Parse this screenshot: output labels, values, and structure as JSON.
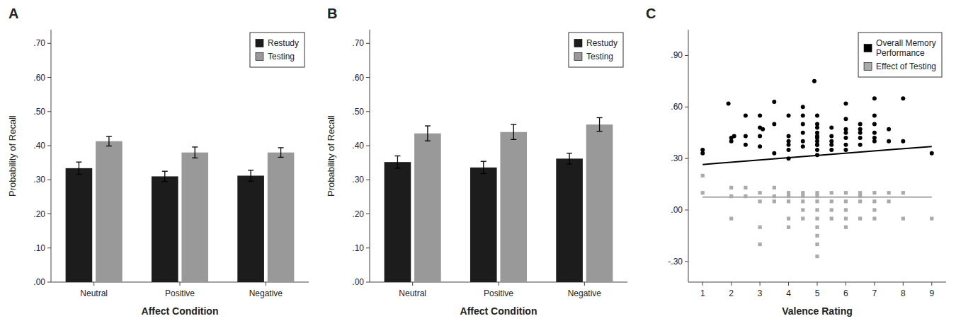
{
  "chart_data": [
    {
      "type": "bar",
      "title": "A",
      "categories": [
        "Neutral",
        "Positive",
        "Negative"
      ],
      "series": [
        {
          "name": "Restudy",
          "color": "#1c1c1c",
          "values": [
            0.334,
            0.31,
            0.312
          ],
          "errors": [
            0.018,
            0.015,
            0.016
          ]
        },
        {
          "name": "Testing",
          "color": "#999999",
          "values": [
            0.413,
            0.38,
            0.38
          ],
          "errors": [
            0.014,
            0.016,
            0.014
          ]
        }
      ],
      "xlabel": "Affect Condition",
      "ylabel": "Probability of Recall",
      "ylim": [
        0.0,
        0.74
      ],
      "yticks": [
        {
          "value": 0.0,
          "label": ".00"
        },
        {
          "value": 0.1,
          "label": ".10"
        },
        {
          "value": 0.2,
          "label": ".20"
        },
        {
          "value": 0.3,
          "label": ".30"
        },
        {
          "value": 0.4,
          "label": ".40"
        },
        {
          "value": 0.5,
          "label": ".50"
        },
        {
          "value": 0.6,
          "label": ".60"
        },
        {
          "value": 0.7,
          "label": ".70"
        }
      ],
      "legend": "upper right"
    },
    {
      "type": "bar",
      "title": "B",
      "categories": [
        "Neutral",
        "Positive",
        "Negative"
      ],
      "series": [
        {
          "name": "Restudy",
          "color": "#1c1c1c",
          "values": [
            0.352,
            0.336,
            0.362
          ],
          "errors": [
            0.018,
            0.018,
            0.016
          ]
        },
        {
          "name": "Testing",
          "color": "#999999",
          "values": [
            0.436,
            0.44,
            0.462
          ],
          "errors": [
            0.022,
            0.022,
            0.02
          ]
        }
      ],
      "xlabel": "Affect Condition",
      "ylabel": "Probability of Recall",
      "ylim": [
        0.0,
        0.74
      ],
      "yticks": [
        {
          "value": 0.0,
          "label": ".00"
        },
        {
          "value": 0.1,
          "label": ".10"
        },
        {
          "value": 0.2,
          "label": ".20"
        },
        {
          "value": 0.3,
          "label": ".30"
        },
        {
          "value": 0.4,
          "label": ".40"
        },
        {
          "value": 0.5,
          "label": ".50"
        },
        {
          "value": 0.6,
          "label": ".60"
        },
        {
          "value": 0.7,
          "label": ".70"
        }
      ],
      "legend": "upper right"
    },
    {
      "type": "scatter",
      "title": "C",
      "xlabel": "Valence Rating",
      "xlim": [
        0.5,
        9.5
      ],
      "xticks": [
        1,
        2,
        3,
        4,
        5,
        6,
        7,
        8,
        9
      ],
      "ylim": [
        -0.42,
        1.05
      ],
      "yticks": [
        {
          "value": -0.3,
          "label": "-.30"
        },
        {
          "value": 0.0,
          "label": ".00"
        },
        {
          "value": 0.3,
          "label": ".30"
        },
        {
          "value": 0.6,
          "label": ".60"
        },
        {
          "value": 0.9,
          "label": ".90"
        }
      ],
      "legend": "upper right",
      "series": [
        {
          "name": "Overall Memory\nPerformance",
          "color": "#000000",
          "marker": "circle",
          "x": [
            1.0,
            1.0,
            1.9,
            2.0,
            2.0,
            2.1,
            2.5,
            2.5,
            2.5,
            3.0,
            3.0,
            3.0,
            3.0,
            3.1,
            3.5,
            3.5,
            3.5,
            4.0,
            4.0,
            4.0,
            4.0,
            4.0,
            4.0,
            4.5,
            4.5,
            4.5,
            4.5,
            4.5,
            4.5,
            4.9,
            5.0,
            5.0,
            5.0,
            5.0,
            5.0,
            5.0,
            5.0,
            5.0,
            5.0,
            5.0,
            5.0,
            5.5,
            5.5,
            5.5,
            5.5,
            5.5,
            6.0,
            6.0,
            6.0,
            6.0,
            6.0,
            6.0,
            6.0,
            6.5,
            6.5,
            6.5,
            6.5,
            6.5,
            7.0,
            7.0,
            7.0,
            7.0,
            7.0,
            7.0,
            7.5,
            7.5,
            8.0,
            8.0,
            9.0
          ],
          "values": [
            0.33,
            0.35,
            0.62,
            0.4,
            0.42,
            0.43,
            0.55,
            0.43,
            0.38,
            0.48,
            0.37,
            0.43,
            0.55,
            0.47,
            0.33,
            0.5,
            0.63,
            0.3,
            0.43,
            0.38,
            0.35,
            0.55,
            0.4,
            0.37,
            0.4,
            0.55,
            0.5,
            0.45,
            0.6,
            0.75,
            0.4,
            0.43,
            0.38,
            0.48,
            0.55,
            0.45,
            0.35,
            0.5,
            0.42,
            0.32,
            0.38,
            0.4,
            0.38,
            0.43,
            0.48,
            0.35,
            0.42,
            0.47,
            0.38,
            0.53,
            0.45,
            0.35,
            0.62,
            0.45,
            0.5,
            0.42,
            0.38,
            0.47,
            0.42,
            0.5,
            0.65,
            0.4,
            0.55,
            0.45,
            0.4,
            0.47,
            0.4,
            0.65,
            0.33
          ]
        },
        {
          "name": "Effect of Testing",
          "color": "#aaaaaa",
          "marker": "square",
          "x": [
            1.0,
            1.0,
            2.0,
            2.0,
            2.0,
            2.5,
            2.5,
            3.0,
            3.0,
            3.0,
            3.0,
            3.5,
            3.5,
            3.5,
            4.0,
            4.0,
            4.0,
            4.0,
            4.0,
            4.5,
            4.5,
            4.5,
            4.5,
            4.5,
            5.0,
            5.0,
            5.0,
            5.0,
            5.0,
            5.0,
            5.0,
            5.0,
            5.0,
            5.5,
            5.5,
            5.5,
            5.5,
            6.0,
            6.0,
            6.0,
            6.0,
            6.0,
            6.5,
            6.5,
            6.5,
            6.5,
            7.0,
            7.0,
            7.0,
            7.0,
            7.5,
            7.5,
            8.0,
            8.0,
            9.0
          ],
          "values": [
            0.2,
            0.1,
            0.13,
            0.08,
            -0.05,
            0.08,
            0.13,
            0.05,
            0.1,
            -0.1,
            -0.2,
            0.05,
            0.08,
            0.13,
            0.05,
            0.1,
            -0.05,
            -0.1,
            0.08,
            0.08,
            0.05,
            0.0,
            0.1,
            -0.05,
            0.08,
            0.05,
            0.1,
            -0.05,
            0.0,
            -0.1,
            -0.15,
            -0.2,
            -0.27,
            0.05,
            0.1,
            0.0,
            -0.05,
            0.05,
            0.1,
            -0.05,
            0.0,
            -0.1,
            0.08,
            0.05,
            0.1,
            -0.05,
            0.05,
            0.1,
            0.0,
            -0.05,
            0.1,
            0.05,
            0.1,
            -0.05,
            -0.05
          ]
        },
        {
          "type": "line",
          "color": "#aaaaaa",
          "x": [
            1,
            9
          ],
          "values": [
            0.075,
            0.075
          ]
        },
        {
          "type": "line",
          "color": "#000000",
          "x": [
            1,
            9
          ],
          "values": [
            0.265,
            0.37
          ]
        }
      ]
    }
  ]
}
